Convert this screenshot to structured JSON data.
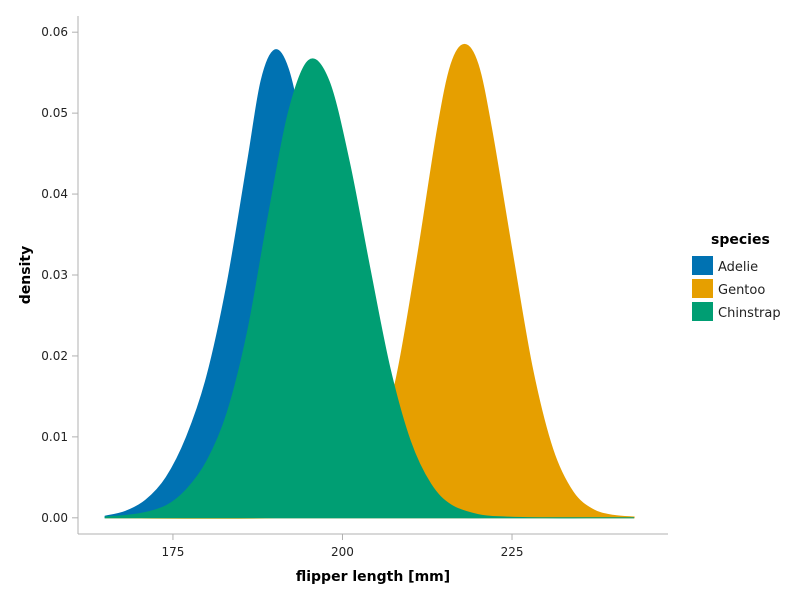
{
  "chart_data": {
    "type": "area",
    "title": "",
    "xlabel": "flipper length [mm]",
    "ylabel": "density",
    "xlim": [
      161,
      248
    ],
    "ylim": [
      -0.002,
      0.062
    ],
    "x_ticks": [
      175,
      200,
      225
    ],
    "y_ticks": [
      0.0,
      0.01,
      0.02,
      0.03,
      0.04,
      0.05,
      0.06
    ],
    "y_tick_labels": [
      "0.00",
      "0.01",
      "0.02",
      "0.03",
      "0.04",
      "0.05",
      "0.06"
    ],
    "grid": false,
    "legend": {
      "title": "species",
      "placement": "right",
      "entries": [
        "Adelie",
        "Gentoo",
        "Chinstrap"
      ]
    },
    "series": [
      {
        "name": "Adelie",
        "color": "#0072B2",
        "x": [
          165,
          168,
          171,
          174,
          177,
          180,
          183,
          186,
          188,
          190,
          192,
          194,
          196,
          198,
          200,
          203,
          206,
          209,
          212,
          215,
          218,
          221,
          224,
          230,
          236,
          243
        ],
        "values": [
          0.0002,
          0.0008,
          0.0022,
          0.005,
          0.01,
          0.0175,
          0.029,
          0.044,
          0.054,
          0.0578,
          0.0555,
          0.048,
          0.038,
          0.027,
          0.017,
          0.0075,
          0.0025,
          0.0007,
          0.0002,
          0.0001,
          0,
          0,
          0,
          0,
          0,
          0
        ]
      },
      {
        "name": "Gentoo",
        "color": "#E69F00",
        "x": [
          165,
          190,
          198,
          202,
          205,
          208,
          211,
          214,
          216,
          218,
          220,
          222,
          225,
          228,
          231,
          234,
          237,
          240,
          243
        ],
        "values": [
          0,
          0,
          0.0008,
          0.003,
          0.008,
          0.0175,
          0.032,
          0.048,
          0.056,
          0.0585,
          0.056,
          0.048,
          0.033,
          0.0185,
          0.0085,
          0.0032,
          0.001,
          0.0003,
          0.0001
        ]
      },
      {
        "name": "Chinstrap",
        "color": "#009E73",
        "x": [
          165,
          170,
          174,
          177,
          180,
          183,
          186,
          189,
          192,
          195,
          198,
          201,
          204,
          207,
          210,
          213,
          216,
          220,
          224,
          230,
          236,
          243
        ],
        "values": [
          0.0001,
          0.0005,
          0.0015,
          0.0035,
          0.007,
          0.013,
          0.023,
          0.037,
          0.05,
          0.0565,
          0.054,
          0.044,
          0.031,
          0.0185,
          0.0095,
          0.0042,
          0.0016,
          0.0004,
          0.0001,
          0,
          0,
          0
        ]
      }
    ]
  }
}
